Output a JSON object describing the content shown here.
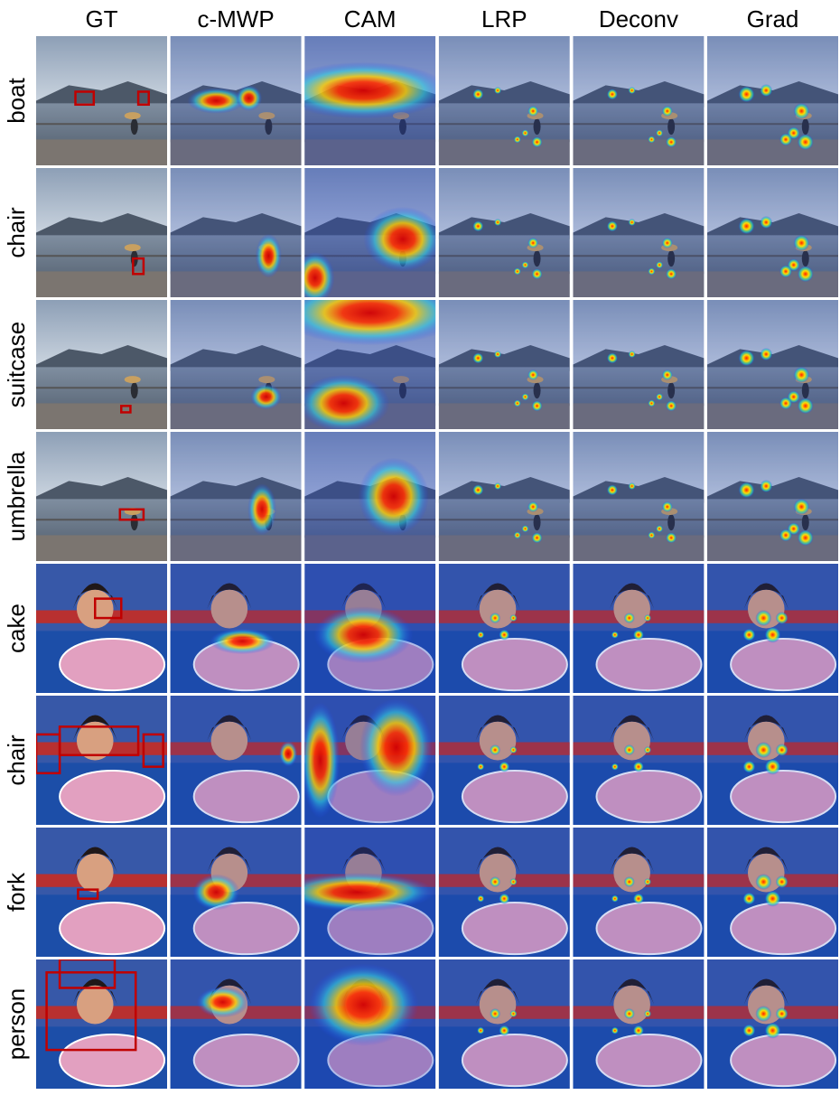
{
  "columns": [
    "GT",
    "c-MWP",
    "CAM",
    "LRP",
    "Deconv",
    "Grad"
  ],
  "rows": [
    "boat",
    "chair",
    "suitcase",
    "umbrella",
    "cake",
    "chair",
    "fork",
    "person"
  ]
}
